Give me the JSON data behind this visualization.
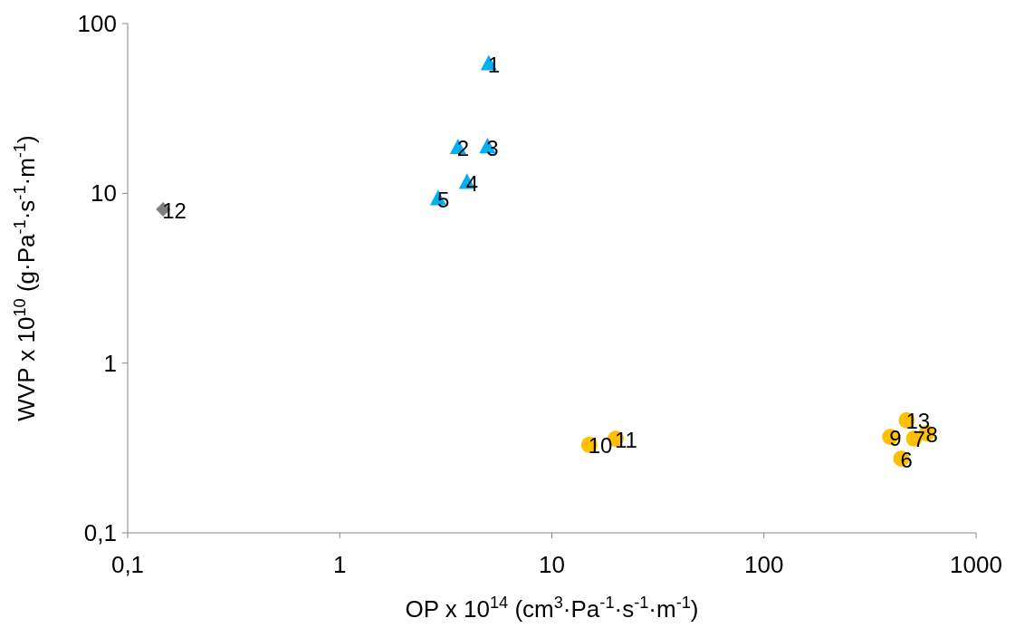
{
  "chart_data": {
    "type": "scatter",
    "xlabel": "OP x 10$^{14}$ (cm$^{3}$·Pa$^{-1}$·s$^{-1}$·m$^{-1}$)",
    "ylabel": "WVP x 10$^{10}$ (g·Pa$^{-1}$·s$^{-1}$·m$^{-1}$)",
    "log": "xy",
    "grid": false,
    "xlim": [
      0.1,
      1000
    ],
    "ylim": [
      0.1,
      100
    ],
    "xticks": [
      {
        "value": 0.1,
        "label": "0,1"
      },
      1,
      10,
      100,
      1000
    ],
    "yticks": [
      {
        "value": 0.1,
        "label": "0,1"
      },
      1,
      10,
      100
    ],
    "series": [
      {
        "color": "#00b0f0",
        "marker": "triangle",
        "x": [
          5.04,
          3.61,
          4.97,
          3.98,
          2.91
        ],
        "values": [
          58,
          18.6,
          18.8,
          11.6,
          9.3
        ]
      },
      {
        "color": "#ffc000",
        "marker": "circle",
        "x": [
          444,
          510,
          585,
          394,
          15,
          20,
          471
        ],
        "values": [
          0.274,
          0.36,
          0.387,
          0.368,
          0.33,
          0.359,
          0.46
        ]
      },
      {
        "color": "#7f7f7f",
        "marker": "diamond",
        "x": [
          0.147
        ],
        "values": [
          8.05
        ]
      }
    ],
    "annotations": [
      {
        "text": "1",
        "x": 5.04,
        "y": 58
      },
      {
        "text": "2",
        "x": 3.61,
        "y": 18.6
      },
      {
        "text": "3",
        "x": 4.97,
        "y": 18.8
      },
      {
        "text": "4",
        "x": 3.98,
        "y": 11.6
      },
      {
        "text": "5",
        "x": 2.91,
        "y": 9.3
      },
      {
        "text": "6",
        "x": 444,
        "y": 0.274
      },
      {
        "text": "7",
        "x": 510,
        "y": 0.36
      },
      {
        "text": "8",
        "x": 585,
        "y": 0.387
      },
      {
        "text": "9",
        "x": 394,
        "y": 0.368
      },
      {
        "text": "10",
        "x": 15,
        "y": 0.33
      },
      {
        "text": "11",
        "x": 20,
        "y": 0.359
      },
      {
        "text": "12",
        "x": 0.147,
        "y": 8.05
      },
      {
        "text": "13",
        "x": 471,
        "y": 0.46
      }
    ]
  }
}
